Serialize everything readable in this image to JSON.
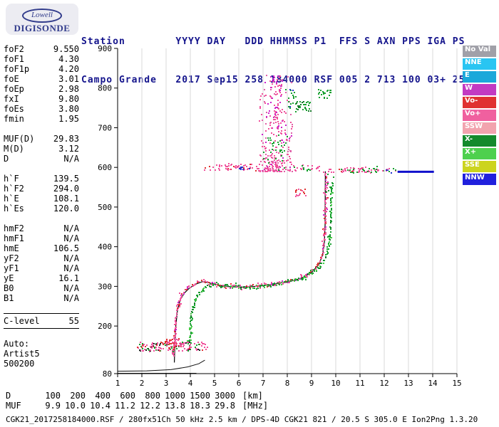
{
  "logo": {
    "line1": "Lowell",
    "line2": "DIGISONDE"
  },
  "header": {
    "row1": "Station        YYYY DAY   DDD HHMMSS P1  FFS S AXN PPS IGA PS",
    "row2": "Campo Grande   2017 Sep15 258 184000 RSF 005 2 713 100 03+ 25"
  },
  "params": {
    "groups": [
      {
        "rows": [
          [
            "foF2",
            "9.550"
          ],
          [
            "foF1",
            "4.30"
          ],
          [
            "foF1p",
            "4.20"
          ],
          [
            "foE",
            "3.01"
          ],
          [
            "foEp",
            "2.98"
          ],
          [
            "fxI",
            "9.80"
          ],
          [
            "foEs",
            "3.80"
          ],
          [
            "fmin",
            "1.95"
          ]
        ]
      },
      {
        "rows": [
          [
            "MUF(D)",
            "29.83"
          ],
          [
            "M(D)",
            "3.12"
          ],
          [
            "D",
            "N/A"
          ]
        ]
      },
      {
        "rows": [
          [
            "h`F",
            "139.5"
          ],
          [
            "h`F2",
            "294.0"
          ],
          [
            "h`E",
            "108.1"
          ],
          [
            "h`Es",
            "120.0"
          ]
        ]
      },
      {
        "rows": [
          [
            "hmF2",
            "N/A"
          ],
          [
            "hmF1",
            "N/A"
          ],
          [
            "hmE",
            "106.5"
          ],
          [
            "yF2",
            "N/A"
          ],
          [
            "yF1",
            "N/A"
          ],
          [
            "yE",
            "16.1"
          ],
          [
            "B0",
            "N/A"
          ],
          [
            "B1",
            "N/A"
          ]
        ]
      },
      {
        "rows": [
          [
            "C-level",
            "55"
          ]
        ],
        "boxed": true
      },
      {
        "rows": [
          [
            "Auto:",
            ""
          ],
          [
            "Artist5",
            ""
          ],
          [
            "500200",
            ""
          ]
        ]
      }
    ]
  },
  "legend": {
    "items": [
      {
        "label": "No Val",
        "color": "#a0a0a8"
      },
      {
        "label": "NNE",
        "color": "#29c5f2"
      },
      {
        "label": "E",
        "color": "#1ba8da"
      },
      {
        "label": "W",
        "color": "#c23ac2"
      },
      {
        "label": "Vo-",
        "color": "#e03131"
      },
      {
        "label": "Vo+",
        "color": "#f0609f"
      },
      {
        "label": "SSW",
        "color": "#f2a3ae"
      },
      {
        "label": "X-",
        "color": "#148a2c"
      },
      {
        "label": "X+",
        "color": "#4ed04e"
      },
      {
        "label": "SSE",
        "color": "#ccd41e"
      },
      {
        "label": "NNW",
        "color": "#2020dd"
      }
    ]
  },
  "chart_data": {
    "type": "scatter",
    "title": "Digisonde ionogram Campo Grande 2017 Sep15 258 184000",
    "xlabel": "[MHz]",
    "ylabel": "[km]",
    "xlim": [
      1,
      15
    ],
    "ylim": [
      80,
      900
    ],
    "x_ticks": [
      1,
      2,
      3,
      4,
      5,
      6,
      7,
      8,
      9,
      10,
      11,
      12,
      13,
      14,
      15
    ],
    "y_ticks": [
      80,
      200,
      300,
      400,
      500,
      600,
      700,
      800,
      900
    ],
    "grid": "vertical",
    "grid_color": "#d8d8d8",
    "axis_color": "#000000",
    "traces": [
      {
        "name": "o-mode-trace",
        "colors": [
          "#f0509b",
          "#e03131",
          "#cc22cc"
        ],
        "weights": [
          0.72,
          0.18,
          0.1
        ],
        "spacing": 2.0,
        "double": 0.35,
        "jx": 1.3,
        "jy": 2.4,
        "path": [
          [
            3.32,
            128
          ],
          [
            3.36,
            170
          ],
          [
            3.41,
            215
          ],
          [
            3.5,
            252
          ],
          [
            3.62,
            275
          ],
          [
            3.8,
            290
          ],
          [
            4.0,
            301
          ],
          [
            4.25,
            309
          ],
          [
            4.5,
            313
          ],
          [
            4.75,
            310
          ],
          [
            5.05,
            304
          ],
          [
            5.5,
            300
          ],
          [
            6.0,
            298
          ],
          [
            6.5,
            299
          ],
          [
            7.0,
            302
          ],
          [
            7.5,
            306
          ],
          [
            8.0,
            312
          ],
          [
            8.45,
            320
          ],
          [
            8.85,
            331
          ],
          [
            9.15,
            345
          ],
          [
            9.35,
            362
          ],
          [
            9.47,
            385
          ],
          [
            9.54,
            420
          ],
          [
            9.58,
            470
          ],
          [
            9.6,
            530
          ],
          [
            9.61,
            585
          ]
        ]
      },
      {
        "name": "x-mode-trace",
        "colors": [
          "#18a030",
          "#44cc44",
          "#147a28"
        ],
        "weights": [
          0.6,
          0.25,
          0.15
        ],
        "spacing": 2.0,
        "double": 0.3,
        "jx": 1.3,
        "jy": 2.4,
        "path": [
          [
            3.95,
            145
          ],
          [
            3.99,
            185
          ],
          [
            4.05,
            228
          ],
          [
            4.15,
            258
          ],
          [
            4.32,
            280
          ],
          [
            4.55,
            294
          ],
          [
            4.8,
            303
          ],
          [
            5.1,
            305
          ],
          [
            5.45,
            301
          ],
          [
            5.9,
            298
          ],
          [
            6.4,
            297
          ],
          [
            6.95,
            300
          ],
          [
            7.5,
            305
          ],
          [
            8.05,
            311
          ],
          [
            8.55,
            320
          ],
          [
            8.95,
            331
          ],
          [
            9.25,
            344
          ],
          [
            9.48,
            360
          ],
          [
            9.63,
            380
          ],
          [
            9.72,
            405
          ],
          [
            9.78,
            445
          ],
          [
            9.81,
            500
          ],
          [
            9.82,
            555
          ]
        ]
      }
    ],
    "clusters": [
      {
        "name": "es-layer",
        "colors": [
          "#f0509b",
          "#18a030",
          "#e03131",
          "#222222"
        ],
        "weights": [
          0.5,
          0.25,
          0.15,
          0.1
        ],
        "x": [
          1.8,
          4.7
        ],
        "y": [
          136,
          158
        ],
        "n": 150
      },
      {
        "name": "es-blob",
        "colors": [
          "#e03131",
          "#f0509b"
        ],
        "weights": [
          0.5,
          0.5
        ],
        "x": [
          2.95,
          3.65
        ],
        "y": [
          142,
          168
        ],
        "n": 40
      },
      {
        "name": "band600-left",
        "colors": [
          "#f0509b",
          "#e03131"
        ],
        "weights": [
          0.8,
          0.2
        ],
        "x": [
          4.55,
          6.9
        ],
        "y": [
          591,
          608
        ],
        "n": 55
      },
      {
        "name": "band600-blue",
        "colors": [
          "#2233cc"
        ],
        "weights": [
          1
        ],
        "x": [
          5.85,
          6.45
        ],
        "y": [
          593,
          601
        ],
        "n": 8
      },
      {
        "name": "spread-plume",
        "colors": [
          "#f0509b",
          "#e060a8",
          "#cc22cc"
        ],
        "weights": [
          0.6,
          0.25,
          0.15
        ],
        "x": [
          6.85,
          8.2
        ],
        "y": [
          590,
          835
        ],
        "n": 260,
        "bias": "bottom"
      },
      {
        "name": "plume-core",
        "colors": [
          "#f0509b",
          "#cc22cc"
        ],
        "weights": [
          0.7,
          0.3
        ],
        "x": [
          7.3,
          7.8
        ],
        "y": [
          700,
          832
        ],
        "n": 55
      },
      {
        "name": "plume-green",
        "colors": [
          "#18a030"
        ],
        "weights": [
          1
        ],
        "x": [
          7.0,
          8.05
        ],
        "y": [
          590,
          680
        ],
        "n": 35
      },
      {
        "name": "green-dash-770",
        "colors": [
          "#18a030",
          "#2233cc"
        ],
        "weights": [
          0.8,
          0.2
        ],
        "x": [
          7.95,
          8.35
        ],
        "y": [
          748,
          800
        ],
        "n": 18
      },
      {
        "name": "green-cluster-750",
        "colors": [
          "#18a030",
          "#147a28"
        ],
        "weights": [
          0.7,
          0.3
        ],
        "x": [
          8.38,
          8.98
        ],
        "y": [
          740,
          768
        ],
        "n": 30
      },
      {
        "name": "green-dash-790",
        "colors": [
          "#18a030"
        ],
        "weights": [
          1
        ],
        "x": [
          9.28,
          9.8
        ],
        "y": [
          772,
          800
        ],
        "n": 20
      },
      {
        "name": "mid-cluster-535",
        "colors": [
          "#e03131",
          "#f0509b"
        ],
        "weights": [
          0.6,
          0.4
        ],
        "x": [
          8.3,
          8.8
        ],
        "y": [
          524,
          545
        ],
        "n": 15
      },
      {
        "name": "band600-mid",
        "colors": [
          "#f0509b",
          "#18a030"
        ],
        "weights": [
          0.6,
          0.4
        ],
        "x": [
          8.2,
          9.15
        ],
        "y": [
          590,
          606
        ],
        "n": 25
      },
      {
        "name": "above-asymptote",
        "colors": [
          "#f0509b"
        ],
        "weights": [
          1
        ],
        "x": [
          9.2,
          9.95
        ],
        "y": [
          588,
          602
        ],
        "n": 12
      },
      {
        "name": "green-top",
        "colors": [
          "#18a030"
        ],
        "weights": [
          1
        ],
        "x": [
          9.6,
          9.92
        ],
        "y": [
          535,
          582
        ],
        "n": 10
      },
      {
        "name": "band600-right",
        "colors": [
          "#f0509b",
          "#18a030",
          "#e03131"
        ],
        "weights": [
          0.55,
          0.35,
          0.1
        ],
        "x": [
          10.15,
          11.75
        ],
        "y": [
          587,
          601
        ],
        "n": 60
      },
      {
        "name": "band600-right2",
        "colors": [
          "#f0509b",
          "#18a030",
          "#2233cc"
        ],
        "weights": [
          0.5,
          0.3,
          0.2
        ],
        "x": [
          11.9,
          12.5
        ],
        "y": [
          588,
          597
        ],
        "n": 12
      }
    ],
    "lines": [
      {
        "name": "baseline-flat",
        "color": "#111111",
        "width": 1,
        "points": [
          [
            1.0,
            81
          ],
          [
            4.25,
            81
          ]
        ]
      },
      {
        "name": "baseline-rise",
        "color": "#111111",
        "width": 1,
        "points": [
          [
            1.0,
            86
          ],
          [
            2.2,
            87
          ],
          [
            3.2,
            90
          ],
          [
            3.9,
            97
          ],
          [
            4.35,
            105
          ],
          [
            4.6,
            114
          ]
        ]
      },
      {
        "name": "artist-trace",
        "color": "#000000",
        "width": 1.2,
        "points": [
          [
            3.34,
            108
          ],
          [
            3.36,
            150
          ],
          [
            3.4,
            200
          ],
          [
            3.47,
            240
          ],
          [
            3.58,
            266
          ],
          [
            3.75,
            283
          ],
          [
            3.95,
            295
          ],
          [
            4.2,
            305
          ],
          [
            4.5,
            312
          ],
          [
            4.8,
            309
          ],
          [
            5.15,
            303
          ],
          [
            5.7,
            299
          ],
          [
            6.3,
            298
          ],
          [
            6.9,
            301
          ],
          [
            7.5,
            306
          ],
          [
            8.1,
            312
          ],
          [
            8.6,
            321
          ],
          [
            9.0,
            335
          ],
          [
            9.3,
            355
          ],
          [
            9.45,
            378
          ],
          [
            9.53,
            410
          ],
          [
            9.56,
            455
          ],
          [
            9.57,
            590
          ]
        ]
      },
      {
        "name": "blue-line",
        "color": "#1111cc",
        "width": 3,
        "above": true,
        "points": [
          [
            12.55,
            589
          ],
          [
            14.05,
            589
          ]
        ]
      }
    ]
  },
  "dmuf": {
    "d_label": "D",
    "d_values": [
      "100",
      "200",
      "400",
      "600",
      "800",
      "1000",
      "1500",
      "3000"
    ],
    "d_unit": "[km]",
    "muf_label": "MUF",
    "muf_values": [
      "9.9",
      "10.0",
      "10.4",
      "11.2",
      "12.2",
      "13.8",
      "18.3",
      "29.8"
    ],
    "muf_unit": "[MHz]"
  },
  "footer": {
    "text": "CGK21_2017258184000.RSF / 280fx51Ch 50 kHz 2.5 km / DPS-4D CGK21 821 / 20.5 S 305.0 E Ion2Png 1.3.20"
  }
}
